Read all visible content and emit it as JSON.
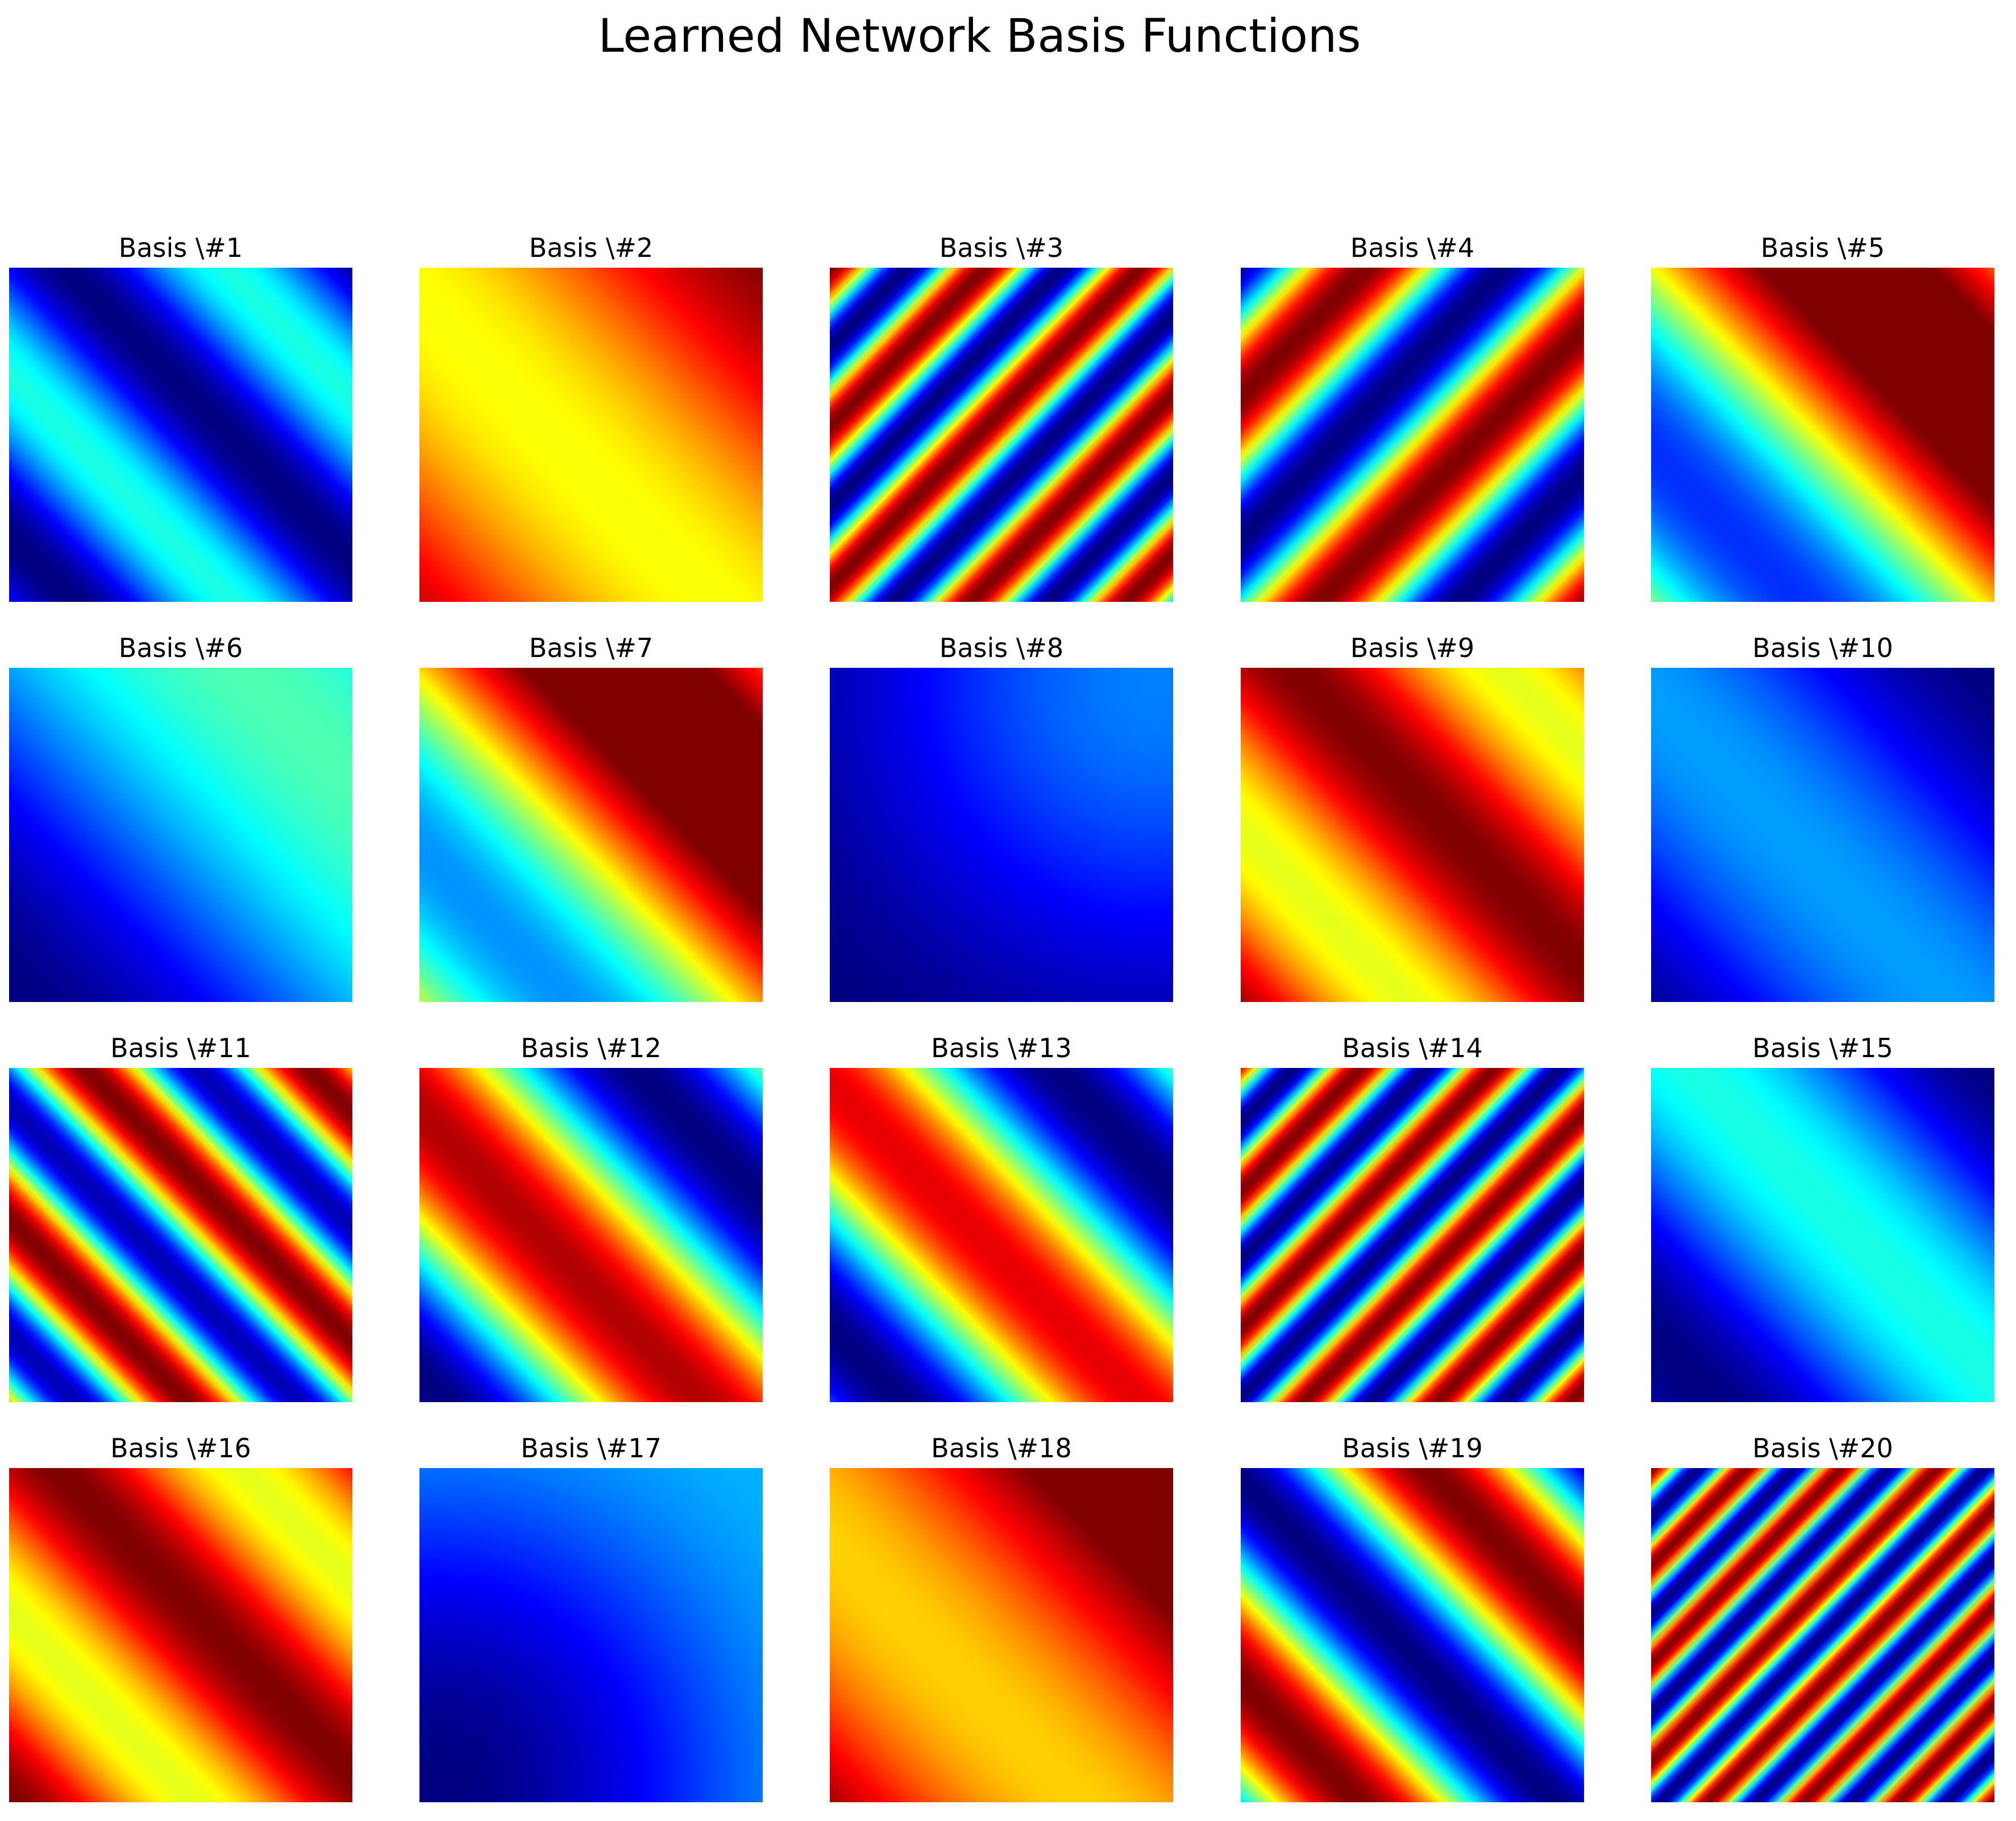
{
  "figure": {
    "title": "Learned Network Basis Functions"
  },
  "chart_data": {
    "type": "heatmap",
    "title": "Learned Network Basis Functions",
    "colormap": "jet",
    "grid": false,
    "axes_visible": false,
    "layout": {
      "rows": 4,
      "cols": 5
    },
    "panels": [
      {
        "title": "Basis \\#1",
        "orientation": "anti-diagonal",
        "cycles": 2.1,
        "phase": 0.3,
        "value_range": [
          0.0,
          0.4
        ]
      },
      {
        "title": "Basis \\#2",
        "orientation": "anti-diagonal",
        "cycles": 0.8,
        "phase": 0.15,
        "value_range": [
          0.62,
          1.0
        ]
      },
      {
        "title": "Basis \\#3",
        "orientation": "diagonal",
        "cycles": 4.3,
        "phase": 0.0,
        "value_range": [
          0.0,
          1.0
        ]
      },
      {
        "title": "Basis \\#4",
        "orientation": "diagonal",
        "cycles": 2.4,
        "phase": 0.55,
        "value_range": [
          0.0,
          1.0
        ]
      },
      {
        "title": "Basis \\#5",
        "orientation": "anti-diagonal",
        "cycles": 0.9,
        "phase": 0.3,
        "value_range": [
          0.05,
          1.0
        ],
        "clip_high": true
      },
      {
        "title": "Basis \\#6",
        "orientation": "anti-diagonal",
        "cycles": 0.6,
        "phase": 0.5,
        "value_range": [
          0.0,
          0.45
        ]
      },
      {
        "title": "Basis \\#7",
        "orientation": "anti-diagonal",
        "cycles": 0.9,
        "phase": 0.3,
        "value_range": [
          0.15,
          1.0
        ],
        "clip_high": true
      },
      {
        "title": "Basis \\#8",
        "orientation": "radial",
        "cycles": 0.5,
        "phase": 0.0,
        "value_range": [
          0.0,
          0.25
        ]
      },
      {
        "title": "Basis \\#9",
        "orientation": "anti-diagonal",
        "cycles": 1.6,
        "phase": 0.1,
        "value_range": [
          0.6,
          1.0
        ]
      },
      {
        "title": "Basis \\#10",
        "orientation": "anti-diagonal",
        "cycles": 0.9,
        "phase": 0.6,
        "value_range": [
          0.0,
          0.28
        ]
      },
      {
        "title": "Basis \\#11",
        "orientation": "anti-diagonal",
        "cycles": 3.0,
        "phase": 0.2,
        "value_range": [
          0.05,
          1.0
        ]
      },
      {
        "title": "Basis \\#12",
        "orientation": "anti-diagonal",
        "cycles": 1.3,
        "phase": 0.45,
        "value_range": [
          0.0,
          0.95
        ]
      },
      {
        "title": "Basis \\#13",
        "orientation": "anti-diagonal",
        "cycles": 1.4,
        "phase": 0.35,
        "value_range": [
          0.0,
          0.9
        ]
      },
      {
        "title": "Basis \\#14",
        "orientation": "diagonal",
        "cycles": 5.0,
        "phase": 0.1,
        "value_range": [
          0.0,
          1.0
        ]
      },
      {
        "title": "Basis \\#15",
        "orientation": "anti-diagonal",
        "cycles": 1.1,
        "phase": 0.4,
        "value_range": [
          0.0,
          0.4
        ]
      },
      {
        "title": "Basis \\#16",
        "orientation": "anti-diagonal",
        "cycles": 1.8,
        "phase": 0.0,
        "value_range": [
          0.6,
          1.0
        ]
      },
      {
        "title": "Basis \\#17",
        "orientation": "radial",
        "cycles": 0.5,
        "phase": 0.5,
        "value_range": [
          0.0,
          0.3
        ]
      },
      {
        "title": "Basis \\#18",
        "orientation": "anti-diagonal",
        "cycles": 0.8,
        "phase": 0.2,
        "value_range": [
          0.55,
          1.0
        ],
        "clip_high": true
      },
      {
        "title": "Basis \\#19",
        "orientation": "anti-diagonal",
        "cycles": 1.7,
        "phase": 0.7,
        "value_range": [
          0.0,
          1.0
        ]
      },
      {
        "title": "Basis \\#20",
        "orientation": "diagonal",
        "cycles": 7.0,
        "phase": 0.0,
        "value_range": [
          0.0,
          1.0
        ]
      }
    ]
  }
}
